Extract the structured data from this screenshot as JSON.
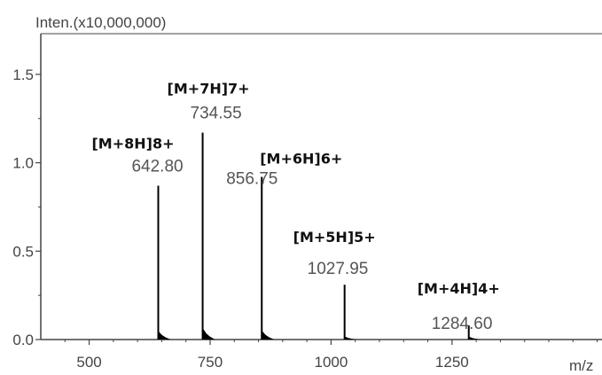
{
  "chart_data": {
    "type": "bar",
    "title": "",
    "ylabel": "Inten.(x10,000,000)",
    "xlabel": "m/z",
    "xlim": [
      400,
      1560
    ],
    "ylim": [
      0,
      1.5
    ],
    "x_ticks": [
      500,
      750,
      1000,
      1250
    ],
    "x_tick_labels": [
      "500",
      "750",
      "1000",
      "1250"
    ],
    "y_ticks": [
      0.0,
      0.5,
      1.0,
      1.5
    ],
    "y_tick_labels": [
      "0.0",
      "0.5",
      "1.0",
      "1.5"
    ],
    "grid": false,
    "peaks": [
      {
        "mz": 642.8,
        "intensity": 0.87,
        "value_label": "642.80",
        "ion_label": "[M+8H]8+"
      },
      {
        "mz": 734.55,
        "intensity": 1.17,
        "value_label": "734.55",
        "ion_label": "[M+7H]7+"
      },
      {
        "mz": 856.75,
        "intensity": 0.92,
        "value_label": "856.75",
        "ion_label": "[M+6H]6+"
      },
      {
        "mz": 1027.95,
        "intensity": 0.31,
        "value_label": "1027.95",
        "ion_label": "[M+5H]5+"
      },
      {
        "mz": 1284.6,
        "intensity": 0.08,
        "value_label": "1284.60",
        "ion_label": "[M+4H]4+"
      }
    ]
  },
  "colors": {
    "axis": "#444444",
    "peak": "#000000"
  }
}
